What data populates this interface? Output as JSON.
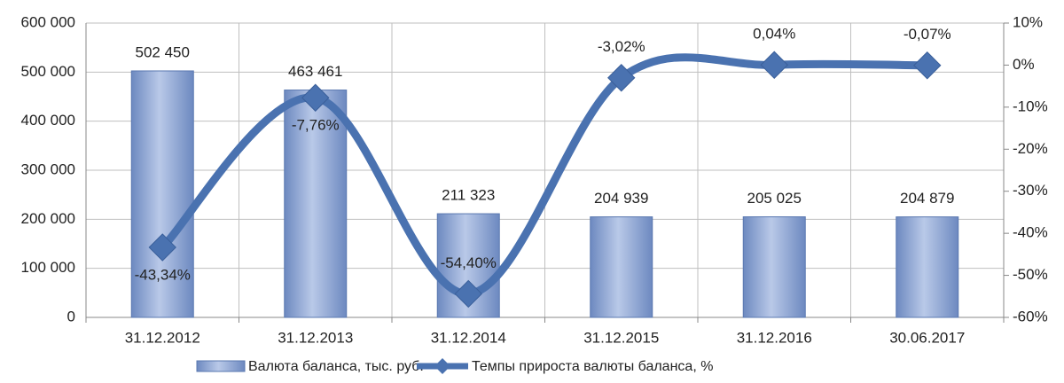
{
  "chart_data": {
    "type": "bar",
    "categories": [
      "31.12.2012",
      "31.12.2013",
      "31.12.2014",
      "31.12.2015",
      "31.12.2016",
      "30.06.2017"
    ],
    "series": [
      {
        "name": "Валюта баланса, тыс. руб.",
        "type": "bar",
        "color": "#8aa3d3",
        "values": [
          502450,
          463461,
          211323,
          204939,
          205025,
          204879
        ],
        "value_labels": [
          "502 450",
          "463 461",
          "211 323",
          "204 939",
          "205 025",
          "204 879"
        ]
      },
      {
        "name": "Темпы прироста валюты баланса, %",
        "type": "line",
        "axis": "y2",
        "color": "#4a72b0",
        "values": [
          -43.34,
          -7.76,
          -54.4,
          -3.02,
          0.04,
          -0.07
        ],
        "value_labels": [
          "-43,34%",
          "-7,76%",
          "-54,40%",
          "-3,02%",
          "0,04%",
          "-0,07%"
        ]
      }
    ],
    "ylim": [
      0,
      600000
    ],
    "yticks": [
      0,
      {
        "value": 100000,
        "label": "100 000"
      },
      {
        "value": 200000,
        "label": "200 000"
      },
      {
        "value": 300000,
        "label": "300 000"
      },
      {
        "value": 400000,
        "label": "400 000"
      },
      {
        "value": 500000,
        "label": "500 000"
      },
      {
        "value": 600000,
        "label": "600 000"
      }
    ],
    "y2lim": [
      -60,
      10
    ],
    "y2ticks": [
      {
        "value": -60,
        "label": "-60%"
      },
      {
        "value": -50,
        "label": "-50%"
      },
      {
        "value": -40,
        "label": "-40%"
      },
      {
        "value": -30,
        "label": "-30%"
      },
      {
        "value": -20,
        "label": "-20%"
      },
      {
        "value": -10,
        "label": "-10%"
      },
      {
        "value": 0,
        "label": "0%"
      },
      {
        "value": 10,
        "label": "10%"
      }
    ],
    "grid": true,
    "legend": "bottom",
    "smooth": true
  }
}
